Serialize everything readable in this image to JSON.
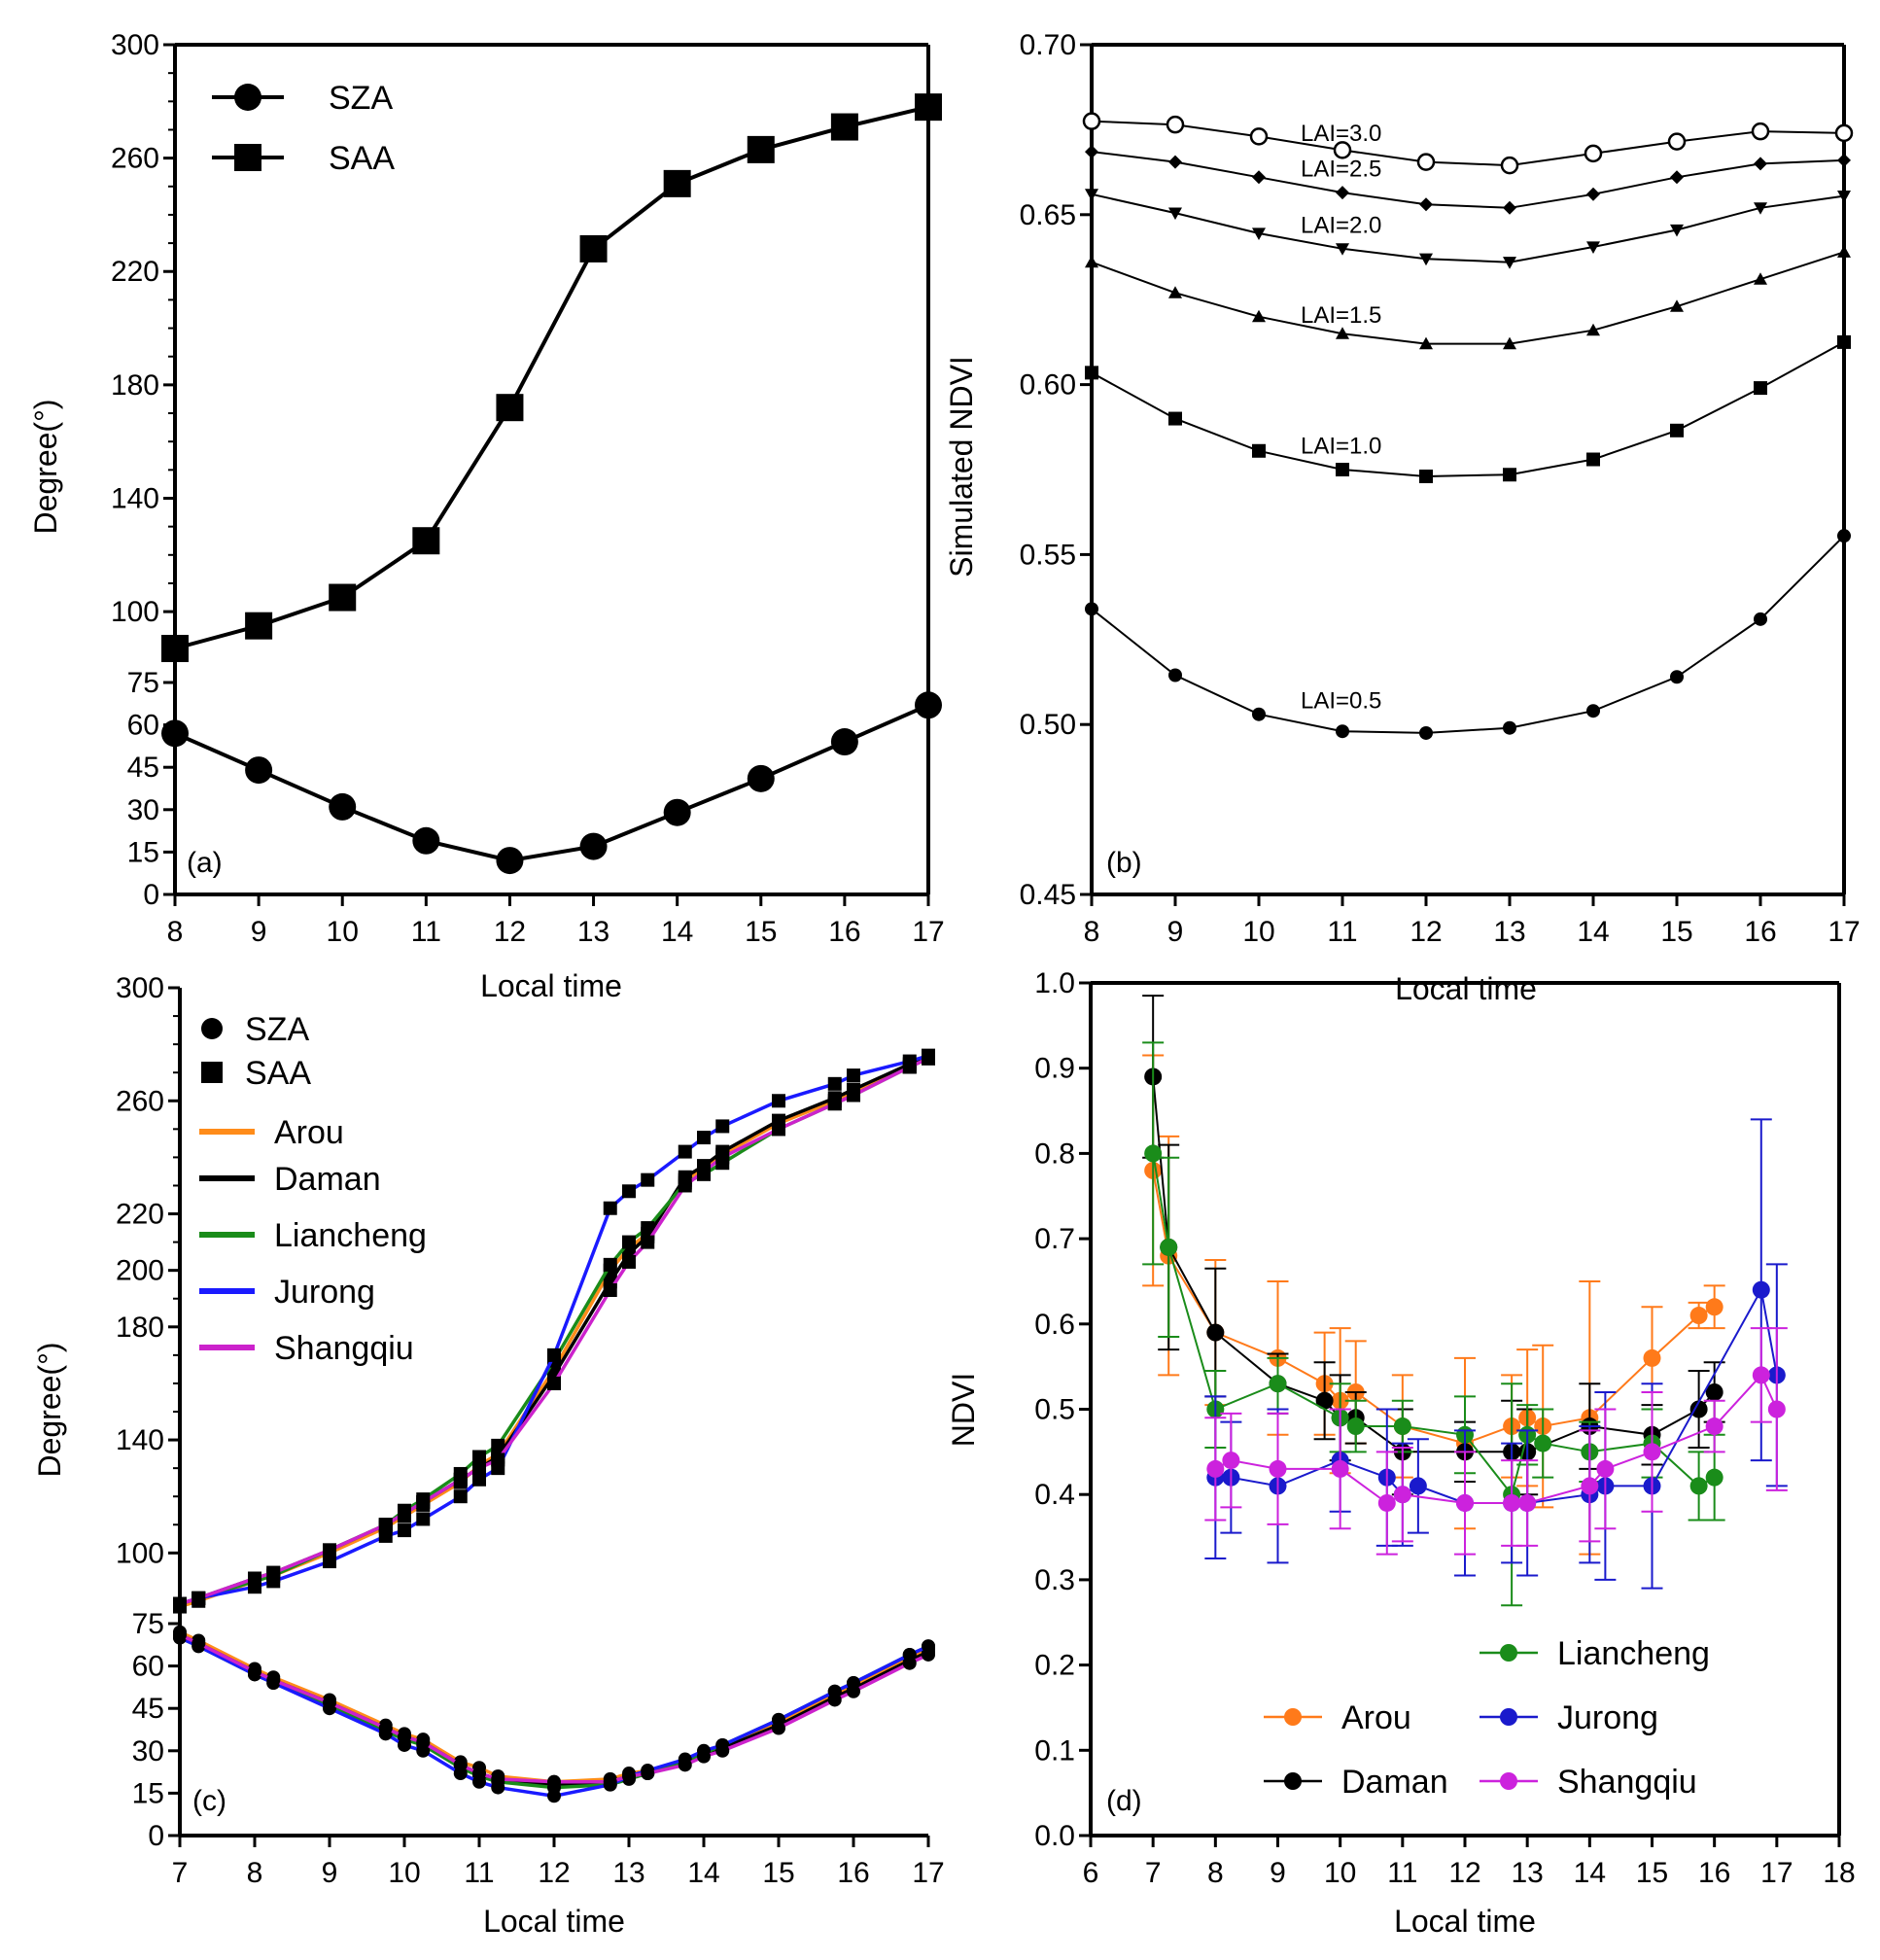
{
  "chart_data": [
    {
      "id": "a",
      "type": "line",
      "panel_label": "(a)",
      "xlabel": "Local time",
      "ylabel": "Degree(°)",
      "xlim": [
        8,
        17
      ],
      "ylim": [
        0,
        300
      ],
      "xticks": [
        8,
        9,
        10,
        11,
        12,
        13,
        14,
        15,
        16,
        17
      ],
      "yticks": [
        0,
        15,
        30,
        45,
        60,
        75,
        100,
        140,
        180,
        220,
        260,
        300
      ],
      "legend": [
        "SZA",
        "SAA"
      ],
      "x": [
        8,
        9,
        10,
        11,
        12,
        13,
        14,
        15,
        16,
        17
      ],
      "series": [
        {
          "name": "SZA",
          "marker": "circle",
          "values": [
            57,
            44,
            31,
            19,
            12,
            17,
            29,
            41,
            54,
            67
          ]
        },
        {
          "name": "SAA",
          "marker": "square",
          "values": [
            87,
            95,
            105,
            125,
            172,
            228,
            251,
            263,
            271,
            278
          ]
        }
      ]
    },
    {
      "id": "b",
      "type": "line",
      "panel_label": "(b)",
      "xlabel": "Local time",
      "ylabel": "Simulated NDVI",
      "xlim": [
        8,
        17
      ],
      "ylim": [
        0.45,
        0.7
      ],
      "xticks": [
        8,
        9,
        10,
        11,
        12,
        13,
        14,
        15,
        16,
        17
      ],
      "yticks": [
        "0.45",
        "0.50",
        "0.55",
        "0.60",
        "0.65",
        "0.70"
      ],
      "x": [
        8,
        9,
        10,
        11,
        12,
        13,
        14,
        15,
        16,
        17
      ],
      "series": [
        {
          "name": "LAI=3.0",
          "marker": "open-circle",
          "values": [
            0.6775,
            0.6765,
            0.673,
            0.669,
            0.6655,
            0.6645,
            0.668,
            0.6715,
            0.6745,
            0.674
          ]
        },
        {
          "name": "LAI=2.5",
          "marker": "diamond",
          "values": [
            0.6685,
            0.6655,
            0.661,
            0.6565,
            0.653,
            0.652,
            0.656,
            0.661,
            0.665,
            0.666
          ]
        },
        {
          "name": "LAI=2.0",
          "marker": "triangle-down",
          "values": [
            0.656,
            0.6505,
            0.6445,
            0.64,
            0.637,
            0.636,
            0.6405,
            0.6455,
            0.652,
            0.6555
          ]
        },
        {
          "name": "LAI=1.5",
          "marker": "triangle-up",
          "values": [
            0.636,
            0.627,
            0.62,
            0.615,
            0.612,
            0.612,
            0.616,
            0.623,
            0.631,
            0.639
          ]
        },
        {
          "name": "LAI=1.0",
          "marker": "square",
          "values": [
            0.6035,
            0.59,
            0.5805,
            0.575,
            0.573,
            0.5735,
            0.578,
            0.5865,
            0.599,
            0.6125
          ]
        },
        {
          "name": "LAI=0.5",
          "marker": "circle",
          "values": [
            0.534,
            0.5145,
            0.503,
            0.498,
            0.4975,
            0.499,
            0.504,
            0.514,
            0.531,
            0.5555
          ]
        }
      ]
    },
    {
      "id": "c",
      "type": "line",
      "panel_label": "(c)",
      "xlabel": "Local time",
      "ylabel": "Degree(°)",
      "xlim": [
        7,
        17
      ],
      "ylim": [
        0,
        300
      ],
      "xticks": [
        7,
        8,
        9,
        10,
        11,
        12,
        13,
        14,
        15,
        16,
        17
      ],
      "yticks": [
        0,
        15,
        30,
        45,
        60,
        75,
        100,
        140,
        180,
        200,
        220,
        260,
        300
      ],
      "legend": [
        "SZA",
        "SAA",
        "Arou",
        "Daman",
        "Liancheng",
        "Jurong",
        "Shangqiu"
      ],
      "series": [
        {
          "name": "Arou",
          "color": "#ff8c1a",
          "x": [
            7,
            7.25,
            8,
            8.25,
            9,
            9.75,
            10,
            10.25,
            10.75,
            11,
            11.25,
            12,
            12.75,
            13,
            13.25,
            13.75,
            14,
            14.25,
            15,
            15.75,
            16,
            16.75,
            17
          ],
          "sza": [
            72,
            69,
            59,
            56,
            48,
            39,
            36,
            34,
            26,
            24,
            21,
            19,
            20,
            22,
            23,
            26,
            29,
            31,
            40,
            50,
            53,
            63,
            66
          ],
          "saa": [
            81,
            83,
            90,
            92,
            100,
            109,
            113,
            117,
            125,
            131,
            135,
            165,
            200,
            208,
            213,
            232,
            236,
            241,
            252,
            260,
            263,
            272,
            275
          ]
        },
        {
          "name": "Daman",
          "color": "#000000",
          "x": [
            7,
            7.25,
            8,
            8.25,
            9,
            9.75,
            10,
            10.25,
            10.75,
            11,
            11.25,
            12,
            12.75,
            13,
            13.25,
            13.75,
            14,
            14.25,
            15,
            15.75,
            16,
            16.75,
            17
          ],
          "sza": [
            71,
            68,
            58,
            55,
            47,
            38,
            35,
            33,
            25,
            22,
            20,
            18,
            19,
            21,
            22,
            26,
            29,
            31,
            39,
            49,
            52,
            62,
            65
          ],
          "saa": [
            82,
            84,
            91,
            93,
            101,
            110,
            114,
            118,
            126,
            130,
            134,
            163,
            196,
            206,
            212,
            233,
            237,
            242,
            253,
            261,
            264,
            273,
            276
          ]
        },
        {
          "name": "Liancheng",
          "color": "#1a8c1a",
          "x": [
            7,
            7.25,
            8,
            8.25,
            9,
            9.75,
            10,
            10.25,
            10.75,
            11,
            11.25,
            12,
            12.75,
            13,
            13.25,
            13.75,
            14,
            14.25,
            15,
            15.75,
            16,
            16.75,
            17
          ],
          "sza": [
            70,
            67,
            57,
            54,
            46,
            37,
            34,
            32,
            24,
            21,
            19,
            17,
            18,
            20,
            22,
            26,
            29,
            32,
            41,
            51,
            54,
            64,
            67
          ],
          "saa": [
            82,
            84,
            90,
            92,
            101,
            110,
            115,
            119,
            128,
            134,
            138,
            168,
            202,
            210,
            215,
            231,
            234,
            238,
            250,
            259,
            262,
            272,
            275
          ]
        },
        {
          "name": "Jurong",
          "color": "#1a1aff",
          "x": [
            7,
            7.25,
            8,
            8.25,
            9,
            9.75,
            10,
            10.25,
            10.75,
            11,
            11.25,
            12,
            12.75,
            13,
            13.25,
            13.75,
            14,
            14.25,
            15,
            15.75,
            16,
            16.75,
            17
          ],
          "sza": [
            70,
            67,
            57,
            54,
            45,
            36,
            32,
            30,
            22,
            19,
            17,
            14,
            18,
            21,
            23,
            27,
            30,
            32,
            41,
            51,
            54,
            64,
            67
          ],
          "saa": [
            82,
            84,
            88,
            90,
            97,
            106,
            108,
            112,
            120,
            126,
            130,
            170,
            222,
            228,
            232,
            242,
            247,
            251,
            260,
            266,
            269,
            274,
            276
          ]
        },
        {
          "name": "Shangqiu",
          "color": "#cc22cc",
          "x": [
            7,
            7.25,
            8,
            8.25,
            9,
            9.75,
            10,
            10.25,
            10.75,
            11,
            11.25,
            12,
            12.75,
            13,
            13.25,
            13.75,
            14,
            14.25,
            15,
            15.75,
            16,
            16.75,
            17
          ],
          "sza": [
            71,
            68,
            58,
            55,
            47,
            38,
            35,
            33,
            25,
            22,
            20,
            19,
            19,
            21,
            22,
            25,
            28,
            30,
            38,
            48,
            51,
            61,
            64
          ],
          "saa": [
            82,
            84,
            91,
            93,
            101,
            110,
            114,
            118,
            126,
            130,
            133,
            160,
            193,
            203,
            210,
            230,
            235,
            240,
            250,
            259,
            262,
            272,
            275
          ]
        }
      ]
    },
    {
      "id": "d",
      "type": "line",
      "panel_label": "(d)",
      "xlabel": "Local time",
      "ylabel": "NDVI",
      "xlim": [
        6,
        18
      ],
      "ylim": [
        0,
        1
      ],
      "xticks": [
        6,
        7,
        8,
        9,
        10,
        11,
        12,
        13,
        14,
        15,
        16,
        17,
        18
      ],
      "yticks": [
        "0.0",
        "0.1",
        "0.2",
        "0.3",
        "0.4",
        "0.5",
        "0.6",
        "0.7",
        "0.8",
        "0.9",
        "1.0"
      ],
      "legend": [
        "Liancheng",
        "Arou",
        "Jurong",
        "Daman",
        "Shangqiu"
      ],
      "series": [
        {
          "name": "Arou",
          "color": "#ff7a1a",
          "x": [
            7,
            7.25,
            8,
            9,
            9.75,
            10,
            10.25,
            11,
            12,
            12.75,
            13,
            13.25,
            14,
            15,
            15.75,
            16
          ],
          "y": [
            0.78,
            0.68,
            0.59,
            0.56,
            0.53,
            0.51,
            0.52,
            0.48,
            0.46,
            0.48,
            0.49,
            0.48,
            0.49,
            0.56,
            0.61,
            0.62
          ],
          "err": [
            0.135,
            0.14,
            0.085,
            0.09,
            0.06,
            0.085,
            0.06,
            0.06,
            0.1,
            0.06,
            0.08,
            0.095,
            0.16,
            0.06,
            0.015,
            0.025
          ]
        },
        {
          "name": "Daman",
          "color": "#000000",
          "x": [
            7,
            7.25,
            8,
            9,
            9.75,
            10,
            10.25,
            11,
            12,
            12.75,
            13,
            14,
            15,
            15.75,
            16
          ],
          "y": [
            0.89,
            0.69,
            0.59,
            0.53,
            0.51,
            0.49,
            0.49,
            0.45,
            0.45,
            0.45,
            0.45,
            0.48,
            0.47,
            0.5,
            0.52
          ],
          "err": [
            0.095,
            0.12,
            0.075,
            0.035,
            0.045,
            0.05,
            0.03,
            0.05,
            0.035,
            0.06,
            0.05,
            0.05,
            0.035,
            0.045,
            0.035
          ]
        },
        {
          "name": "Liancheng",
          "color": "#1a8c1a",
          "x": [
            7,
            7.25,
            8,
            9,
            10,
            10.25,
            11,
            12,
            12.75,
            13,
            13.25,
            14,
            15,
            15.75,
            16
          ],
          "y": [
            0.8,
            0.69,
            0.5,
            0.53,
            0.49,
            0.48,
            0.48,
            0.47,
            0.4,
            0.47,
            0.46,
            0.45,
            0.46,
            0.41,
            0.42
          ],
          "err": [
            0.13,
            0.105,
            0.045,
            0.03,
            0.04,
            0.03,
            0.03,
            0.045,
            0.13,
            0.035,
            0.04,
            0.035,
            0.04,
            0.04,
            0.05
          ]
        },
        {
          "name": "Jurong",
          "color": "#1a1acc",
          "x": [
            8,
            8.25,
            9,
            10,
            10.75,
            11,
            11.25,
            12,
            12.75,
            13,
            14,
            14.25,
            15,
            16.75,
            17
          ],
          "y": [
            0.42,
            0.42,
            0.41,
            0.44,
            0.42,
            0.4,
            0.41,
            0.39,
            0.39,
            0.39,
            0.4,
            0.41,
            0.41,
            0.64,
            0.54
          ],
          "err": [
            0.095,
            0.065,
            0.09,
            0.06,
            0.08,
            0.06,
            0.055,
            0.085,
            0.07,
            0.085,
            0.08,
            0.11,
            0.12,
            0.2,
            0.13
          ]
        },
        {
          "name": "Shangqiu",
          "color": "#cc22dd",
          "x": [
            8,
            8.25,
            9,
            10,
            10.75,
            11,
            12,
            12.75,
            13,
            14,
            14.25,
            15,
            16,
            16.75,
            17
          ],
          "y": [
            0.43,
            0.44,
            0.43,
            0.43,
            0.39,
            0.4,
            0.39,
            0.39,
            0.39,
            0.41,
            0.43,
            0.45,
            0.48,
            0.54,
            0.5
          ],
          "err": [
            0.06,
            0.055,
            0.065,
            0.07,
            0.06,
            0.055,
            0.06,
            0.05,
            0.05,
            0.065,
            0.07,
            0.07,
            0.03,
            0.055,
            0.095
          ]
        }
      ]
    }
  ]
}
